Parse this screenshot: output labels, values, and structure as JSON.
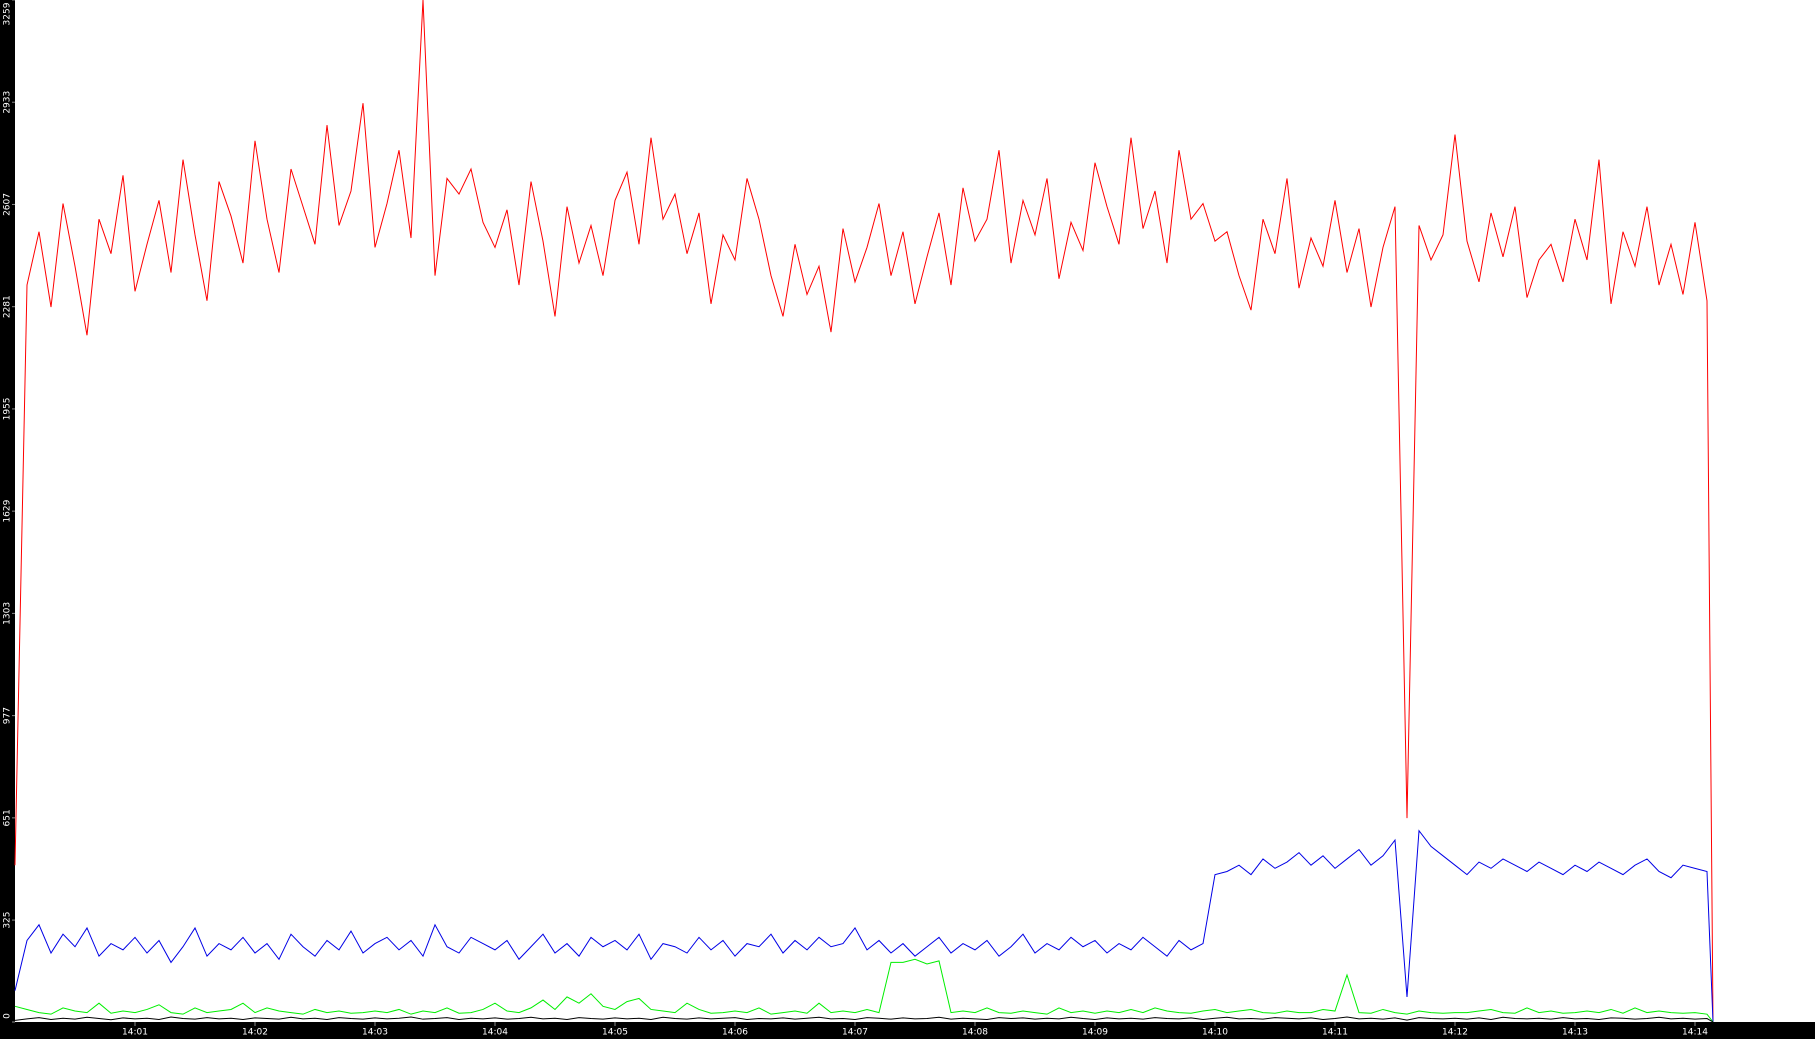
{
  "chart_data": {
    "type": "line",
    "x": [
      0,
      0.1,
      0.2,
      0.3,
      0.4,
      0.5,
      0.6,
      0.7,
      0.8,
      0.9,
      1,
      1.1,
      1.2,
      1.3,
      1.4,
      1.5,
      1.6,
      1.7,
      1.8,
      1.9,
      2,
      2.1,
      2.2,
      2.3,
      2.4,
      2.5,
      2.6,
      2.7,
      2.8,
      2.9,
      3,
      3.1,
      3.2,
      3.3,
      3.4,
      3.5,
      3.6,
      3.7,
      3.8,
      3.9,
      4,
      4.1,
      4.2,
      4.3,
      4.4,
      4.5,
      4.6,
      4.7,
      4.8,
      4.9,
      5,
      5.1,
      5.2,
      5.3,
      5.4,
      5.5,
      5.6,
      5.7,
      5.8,
      5.9,
      6,
      6.1,
      6.2,
      6.3,
      6.4,
      6.5,
      6.6,
      6.7,
      6.8,
      6.9,
      7,
      7.1,
      7.2,
      7.3,
      7.4,
      7.5,
      7.6,
      7.7,
      7.8,
      7.9,
      8,
      8.1,
      8.2,
      8.3,
      8.4,
      8.5,
      8.6,
      8.7,
      8.8,
      8.9,
      9,
      9.1,
      9.2,
      9.3,
      9.4,
      9.5,
      9.6,
      9.7,
      9.8,
      9.9,
      10,
      10.1,
      10.2,
      10.3,
      10.4,
      10.5,
      10.6,
      10.7,
      10.8,
      10.9,
      11,
      11.1,
      11.2,
      11.3,
      11.4,
      11.5,
      11.6,
      11.7,
      11.8,
      11.9,
      12,
      12.1,
      12.2,
      12.3,
      12.4,
      12.5,
      12.6,
      12.7,
      12.8,
      12.9,
      13,
      13.1,
      13.2,
      13.3,
      13.4,
      13.5,
      13.6,
      13.7,
      13.8,
      13.9,
      14,
      14.1,
      14.15
    ],
    "series": [
      {
        "color": "#ff0000",
        "values": [
          500,
          2350,
          2520,
          2280,
          2610,
          2410,
          2190,
          2560,
          2450,
          2700,
          2330,
          2480,
          2620,
          2390,
          2750,
          2510,
          2300,
          2680,
          2570,
          2420,
          2810,
          2560,
          2390,
          2720,
          2600,
          2480,
          2860,
          2540,
          2650,
          2930,
          2470,
          2610,
          2780,
          2500,
          3259,
          2380,
          2690,
          2640,
          2720,
          2550,
          2470,
          2590,
          2350,
          2680,
          2490,
          2250,
          2600,
          2420,
          2540,
          2380,
          2620,
          2710,
          2480,
          2820,
          2560,
          2640,
          2450,
          2580,
          2290,
          2510,
          2430,
          2690,
          2560,
          2380,
          2250,
          2480,
          2320,
          2410,
          2200,
          2530,
          2360,
          2470,
          2610,
          2380,
          2520,
          2290,
          2440,
          2580,
          2350,
          2660,
          2490,
          2560,
          2780,
          2420,
          2620,
          2510,
          2690,
          2370,
          2550,
          2460,
          2740,
          2600,
          2480,
          2820,
          2530,
          2650,
          2420,
          2780,
          2560,
          2610,
          2490,
          2520,
          2380,
          2270,
          2560,
          2450,
          2690,
          2340,
          2500,
          2410,
          2620,
          2390,
          2530,
          2280,
          2470,
          2600,
          650,
          2540,
          2430,
          2510,
          2830,
          2490,
          2360,
          2580,
          2440,
          2600,
          2310,
          2430,
          2480,
          2360,
          2560,
          2430,
          2750,
          2290,
          2520,
          2410,
          2600,
          2350,
          2480,
          2320,
          2550,
          2300,
          0
        ]
      },
      {
        "color": "#0000e6",
        "values": [
          100,
          260,
          310,
          220,
          280,
          240,
          300,
          210,
          250,
          230,
          270,
          220,
          260,
          190,
          240,
          300,
          210,
          250,
          230,
          270,
          220,
          250,
          200,
          280,
          240,
          210,
          260,
          230,
          290,
          220,
          250,
          270,
          230,
          260,
          210,
          310,
          240,
          220,
          270,
          250,
          230,
          260,
          200,
          240,
          280,
          220,
          250,
          210,
          270,
          240,
          260,
          230,
          280,
          200,
          250,
          240,
          220,
          270,
          230,
          260,
          210,
          250,
          240,
          280,
          220,
          260,
          230,
          270,
          240,
          250,
          300,
          230,
          260,
          220,
          250,
          210,
          240,
          270,
          220,
          250,
          230,
          260,
          210,
          240,
          280,
          220,
          250,
          230,
          270,
          240,
          260,
          220,
          250,
          230,
          270,
          240,
          210,
          260,
          230,
          250,
          470,
          480,
          500,
          470,
          520,
          490,
          510,
          540,
          500,
          530,
          490,
          520,
          550,
          500,
          530,
          580,
          80,
          610,
          560,
          530,
          500,
          470,
          510,
          490,
          520,
          500,
          480,
          510,
          490,
          470,
          500,
          480,
          510,
          490,
          470,
          500,
          520,
          480,
          460,
          500,
          490,
          480,
          0
        ]
      },
      {
        "color": "#00ee00",
        "values": [
          50,
          40,
          30,
          25,
          45,
          35,
          30,
          60,
          28,
          35,
          30,
          40,
          55,
          30,
          25,
          45,
          30,
          35,
          40,
          60,
          30,
          45,
          35,
          30,
          25,
          40,
          30,
          35,
          28,
          30,
          35,
          30,
          40,
          25,
          35,
          30,
          45,
          28,
          30,
          40,
          60,
          35,
          30,
          45,
          70,
          40,
          80,
          60,
          90,
          50,
          40,
          65,
          75,
          40,
          35,
          30,
          60,
          40,
          28,
          30,
          35,
          30,
          45,
          25,
          30,
          35,
          28,
          60,
          30,
          35,
          30,
          40,
          30,
          190,
          190,
          200,
          185,
          195,
          30,
          35,
          30,
          45,
          30,
          28,
          35,
          30,
          25,
          45,
          30,
          35,
          28,
          35,
          30,
          40,
          30,
          45,
          35,
          30,
          28,
          35,
          40,
          30,
          35,
          40,
          30,
          28,
          35,
          30,
          30,
          40,
          35,
          150,
          30,
          28,
          40,
          30,
          25,
          35,
          30,
          28,
          30,
          30,
          35,
          40,
          30,
          28,
          45,
          30,
          35,
          28,
          30,
          35,
          30,
          40,
          28,
          45,
          30,
          35,
          30,
          28,
          30,
          25,
          0
        ]
      },
      {
        "color": "#000000",
        "values": [
          5,
          10,
          14,
          8,
          12,
          9,
          15,
          11,
          7,
          13,
          10,
          12,
          8,
          16,
          11,
          9,
          14,
          10,
          12,
          8,
          13,
          11,
          9,
          15,
          10,
          12,
          8,
          14,
          11,
          9,
          13,
          10,
          12,
          16,
          9,
          11,
          14,
          8,
          12,
          10,
          13,
          9,
          11,
          15,
          10,
          12,
          8,
          14,
          11,
          9,
          13,
          10,
          12,
          8,
          15,
          11,
          9,
          13,
          10,
          12,
          14,
          8,
          11,
          10,
          13,
          9,
          12,
          15,
          10,
          11,
          8,
          14,
          12,
          9,
          13,
          10,
          11,
          15,
          9,
          12,
          10,
          8,
          14,
          11,
          13,
          9,
          12,
          10,
          15,
          11,
          8,
          13,
          10,
          12,
          9,
          14,
          11,
          10,
          13,
          8,
          12,
          15,
          10,
          11,
          9,
          14,
          12,
          10,
          13,
          8,
          11,
          16,
          10,
          12,
          9,
          13,
          6,
          14,
          11,
          10,
          12,
          9,
          13,
          8,
          15,
          11,
          10,
          12,
          9,
          14,
          10,
          11,
          8,
          13,
          12,
          9,
          11,
          15,
          10,
          12,
          9,
          11,
          0
        ]
      }
    ],
    "xlim": [
      0,
      15
    ],
    "xticks": [
      {
        "value": 1,
        "label": "14:01"
      },
      {
        "value": 2,
        "label": "14:02"
      },
      {
        "value": 3,
        "label": "14:03"
      },
      {
        "value": 4,
        "label": "14:04"
      },
      {
        "value": 5,
        "label": "14:05"
      },
      {
        "value": 6,
        "label": "14:06"
      },
      {
        "value": 7,
        "label": "14:07"
      },
      {
        "value": 8,
        "label": "14:08"
      },
      {
        "value": 9,
        "label": "14:09"
      },
      {
        "value": 10,
        "label": "14:10"
      },
      {
        "value": 11,
        "label": "14:11"
      },
      {
        "value": 12,
        "label": "14:12"
      },
      {
        "value": 13,
        "label": "14:13"
      },
      {
        "value": 14,
        "label": "14:14"
      }
    ],
    "ylim": [
      0,
      3259
    ],
    "yticks": [
      0,
      325,
      651,
      977,
      1303,
      1629,
      1955,
      2281,
      2607,
      2933,
      3259
    ]
  }
}
